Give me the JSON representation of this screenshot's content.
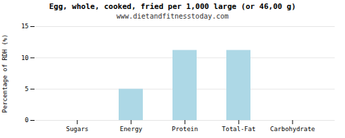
{
  "chart_data": {
    "type": "bar",
    "title": "Egg, whole, cooked, fried per 1,000 large (or 46,00 g)",
    "subtitle": "www.dietandfitnesstoday.com",
    "categories": [
      "Sugars",
      "Energy",
      "Protein",
      "Total-Fat",
      "Carbohydrate"
    ],
    "values": [
      0,
      5,
      11.2,
      11.2,
      0
    ],
    "color": "#add8e6",
    "ylabel": "Percentage of RDH (%)",
    "ylim": [
      0,
      15
    ],
    "yticks": [
      0,
      5,
      10,
      15
    ],
    "grid": true
  }
}
